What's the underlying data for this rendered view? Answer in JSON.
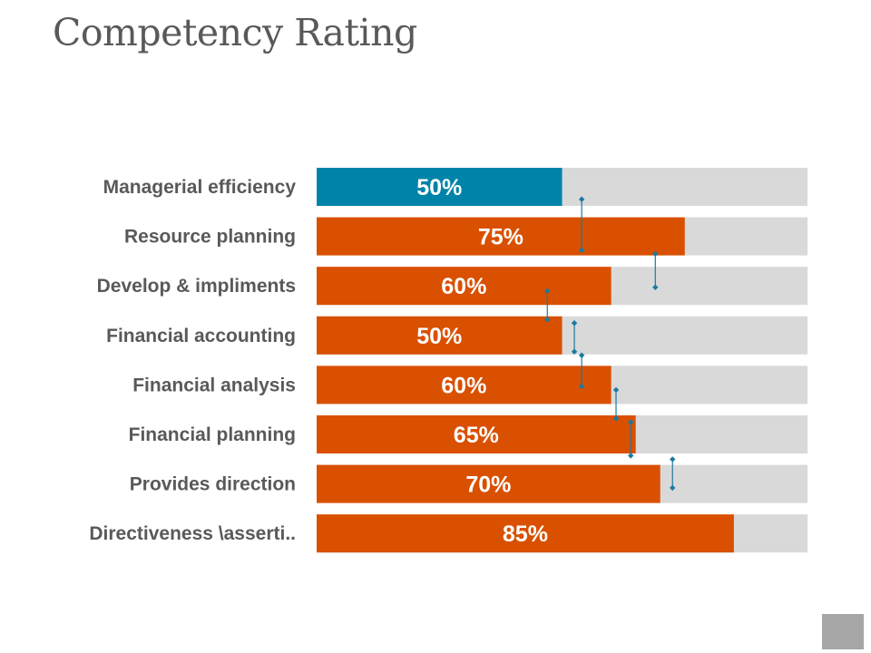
{
  "slide": {
    "title": "Competency Rating"
  },
  "colors": {
    "highlight": "#0083a8",
    "primary": "#d95000",
    "track": "#d9d9d9",
    "label_text": "#595959",
    "value_text": "#ffffff",
    "connector": "#1a7aa0",
    "corner_box": "#a6a6a6"
  },
  "chart_data": {
    "type": "bar",
    "orientation": "horizontal",
    "title": "Competency Rating",
    "xlim": [
      0,
      100
    ],
    "unit": "%",
    "categories": [
      "Managerial efficiency",
      "Resource planning",
      "Develop & impliments",
      "Financial accounting",
      "Financial analysis",
      "Financial planning",
      "Provides direction",
      "Directiveness \\asserti.."
    ],
    "values": [
      50,
      75,
      60,
      50,
      60,
      65,
      70,
      85
    ],
    "value_labels": [
      "50%",
      "75%",
      "60%",
      "50%",
      "60%",
      "65%",
      "70%",
      "85%"
    ],
    "highlighted_index": 0,
    "track_max": 100,
    "connectors": [
      {
        "from": 0,
        "to": 1,
        "value": 54
      },
      {
        "from": 1,
        "to": 2,
        "value": 69
      },
      {
        "from": 2,
        "to": 3,
        "value": 47
      },
      {
        "from": 3,
        "to": 4,
        "value": 52.5
      },
      {
        "from": 4,
        "to": 4,
        "value": 54
      },
      {
        "from": 4,
        "to": 5,
        "value": 61
      },
      {
        "from": 5,
        "to": 6,
        "value": 64
      },
      {
        "from": 6,
        "to": 7,
        "value": 72.5
      }
    ]
  }
}
